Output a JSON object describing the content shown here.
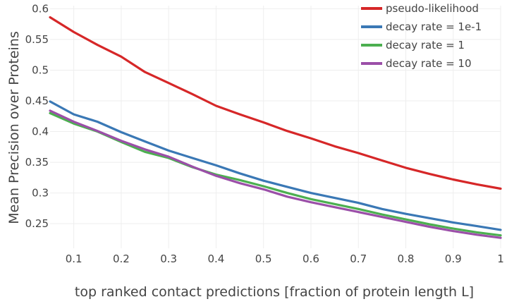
{
  "chart_data": {
    "type": "line",
    "xlabel": "top ranked contact predictions [fraction of protein length L]",
    "ylabel": "Mean Precision over Proteins",
    "xlim": [
      0.05,
      1.0
    ],
    "ylim": [
      0.21,
      0.605
    ],
    "xticks": [
      "0.1",
      "0.2",
      "0.3",
      "0.4",
      "0.5",
      "0.6",
      "0.7",
      "0.8",
      "0.9",
      "1"
    ],
    "yticks": [
      "0.25",
      "0.3",
      "0.35",
      "0.4",
      "0.45",
      "0.5",
      "0.55",
      "0.6"
    ],
    "grid": true,
    "legend_position": "top-right",
    "x": [
      0.05,
      0.1,
      0.15,
      0.2,
      0.25,
      0.3,
      0.35,
      0.4,
      0.45,
      0.5,
      0.55,
      0.6,
      0.65,
      0.7,
      0.75,
      0.8,
      0.85,
      0.9,
      0.95,
      1.0
    ],
    "series": [
      {
        "name": "pseudo-likelihood",
        "color": "#d62728",
        "values": [
          0.586,
          0.562,
          0.541,
          0.522,
          0.497,
          0.479,
          0.461,
          0.442,
          0.428,
          0.415,
          0.401,
          0.389,
          0.376,
          0.365,
          0.353,
          0.341,
          0.331,
          0.322,
          0.314,
          0.307
        ]
      },
      {
        "name": "decay rate = 1e-1",
        "color": "#3a78b5",
        "values": [
          0.449,
          0.428,
          0.416,
          0.399,
          0.384,
          0.369,
          0.357,
          0.345,
          0.332,
          0.32,
          0.31,
          0.3,
          0.292,
          0.284,
          0.274,
          0.266,
          0.259,
          0.252,
          0.246,
          0.24
        ]
      },
      {
        "name": "decay rate = 1",
        "color": "#4caf50",
        "values": [
          0.43,
          0.413,
          0.4,
          0.383,
          0.367,
          0.357,
          0.342,
          0.33,
          0.321,
          0.311,
          0.3,
          0.29,
          0.282,
          0.274,
          0.265,
          0.257,
          0.249,
          0.242,
          0.236,
          0.231
        ]
      },
      {
        "name": "decay rate = 10",
        "color": "#9b4fa8",
        "values": [
          0.434,
          0.416,
          0.401,
          0.385,
          0.371,
          0.359,
          0.343,
          0.328,
          0.316,
          0.306,
          0.294,
          0.285,
          0.277,
          0.269,
          0.261,
          0.253,
          0.245,
          0.238,
          0.232,
          0.227
        ]
      }
    ]
  }
}
